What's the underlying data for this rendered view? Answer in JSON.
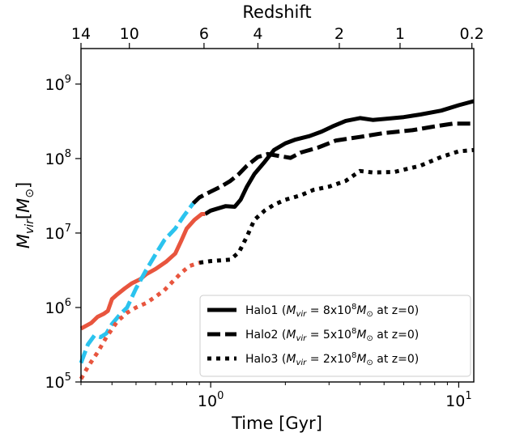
{
  "chart_data": {
    "type": "line",
    "title": "",
    "xlabel": "Time [Gyr]",
    "ylabel_main": "M",
    "ylabel_sub": "vir",
    "ylabel_unit_main": "M",
    "ylabel_unit_sub": "⊙",
    "x_scale": "log",
    "y_scale": "log",
    "xlim": [
      0.3,
      11.5
    ],
    "ylim": [
      100000,
      3000000000
    ],
    "x_ticks": [
      {
        "value": 1,
        "base": "10",
        "exp": "0"
      },
      {
        "value": 10,
        "base": "10",
        "exp": "1"
      }
    ],
    "y_ticks": [
      {
        "value": 100000,
        "base": "10",
        "exp": "5"
      },
      {
        "value": 1000000,
        "base": "10",
        "exp": "6"
      },
      {
        "value": 10000000,
        "base": "10",
        "exp": "7"
      },
      {
        "value": 100000000,
        "base": "10",
        "exp": "8"
      },
      {
        "value": 1000000000,
        "base": "10",
        "exp": "9"
      }
    ],
    "top_axis": {
      "label": "Redshift",
      "ticks": [
        {
          "label": "14",
          "time": 0.3
        },
        {
          "label": "10",
          "time": 0.47
        },
        {
          "label": "6",
          "time": 0.94
        },
        {
          "label": "4",
          "time": 1.55
        },
        {
          "label": "2",
          "time": 3.3
        },
        {
          "label": "1",
          "time": 5.8
        },
        {
          "label": "0.2",
          "time": 11.3
        }
      ]
    },
    "legend_position": "lower-right",
    "series": [
      {
        "name": "Halo1",
        "mass_mantissa": "8",
        "mass_exp": "8",
        "color": "#000000",
        "style": "solid",
        "in_legend": true,
        "points": [
          [
            0.95,
            18000000
          ],
          [
            1.0,
            20000000
          ],
          [
            1.05,
            21000000
          ],
          [
            1.15,
            23000000
          ],
          [
            1.25,
            22500000
          ],
          [
            1.32,
            28000000
          ],
          [
            1.4,
            42000000
          ],
          [
            1.5,
            62000000
          ],
          [
            1.65,
            90000000
          ],
          [
            1.8,
            130000000
          ],
          [
            2.0,
            160000000
          ],
          [
            2.2,
            180000000
          ],
          [
            2.5,
            200000000
          ],
          [
            2.8,
            230000000
          ],
          [
            3.1,
            270000000
          ],
          [
            3.5,
            320000000
          ],
          [
            4.0,
            350000000
          ],
          [
            4.5,
            330000000
          ],
          [
            5.0,
            340000000
          ],
          [
            6.0,
            360000000
          ],
          [
            7.0,
            390000000
          ],
          [
            8.5,
            440000000
          ],
          [
            10.0,
            520000000
          ],
          [
            11.5,
            590000000
          ]
        ]
      },
      {
        "name": "Halo1",
        "color": "#E8553E",
        "style": "solid",
        "in_legend": false,
        "points": [
          [
            0.3,
            520000
          ],
          [
            0.33,
            620000
          ],
          [
            0.35,
            750000
          ],
          [
            0.37,
            820000
          ],
          [
            0.385,
            900000
          ],
          [
            0.4,
            1300000
          ],
          [
            0.42,
            1500000
          ],
          [
            0.45,
            1800000
          ],
          [
            0.48,
            2100000
          ],
          [
            0.52,
            2400000
          ],
          [
            0.55,
            2800000
          ],
          [
            0.6,
            3300000
          ],
          [
            0.66,
            4100000
          ],
          [
            0.72,
            5300000
          ],
          [
            0.76,
            7800000
          ],
          [
            0.8,
            11500000
          ],
          [
            0.86,
            15000000
          ],
          [
            0.92,
            18000000
          ],
          [
            0.95,
            18000000
          ]
        ]
      },
      {
        "name": "Halo2",
        "mass_mantissa": "5",
        "mass_exp": "8",
        "color": "#000000",
        "style": "dashed",
        "in_legend": true,
        "points": [
          [
            0.85,
            25000000
          ],
          [
            0.9,
            30000000
          ],
          [
            1.0,
            36000000
          ],
          [
            1.1,
            42000000
          ],
          [
            1.2,
            50000000
          ],
          [
            1.3,
            62000000
          ],
          [
            1.4,
            80000000
          ],
          [
            1.55,
            105000000
          ],
          [
            1.7,
            115000000
          ],
          [
            1.9,
            108000000
          ],
          [
            2.1,
            102000000
          ],
          [
            2.3,
            120000000
          ],
          [
            2.7,
            140000000
          ],
          [
            3.2,
            175000000
          ],
          [
            4.0,
            195000000
          ],
          [
            5.0,
            220000000
          ],
          [
            6.5,
            240000000
          ],
          [
            8.0,
            270000000
          ],
          [
            9.5,
            295000000
          ],
          [
            11.5,
            295000000
          ]
        ]
      },
      {
        "name": "Halo2",
        "color": "#2BC3EE",
        "style": "dashed",
        "in_legend": false,
        "points": [
          [
            0.3,
            180000
          ],
          [
            0.32,
            320000
          ],
          [
            0.34,
            420000
          ],
          [
            0.36,
            400000
          ],
          [
            0.38,
            450000
          ],
          [
            0.4,
            600000
          ],
          [
            0.43,
            800000
          ],
          [
            0.46,
            1000000
          ],
          [
            0.5,
            1800000
          ],
          [
            0.55,
            3200000
          ],
          [
            0.6,
            5200000
          ],
          [
            0.65,
            8000000
          ],
          [
            0.72,
            11500000
          ],
          [
            0.78,
            17000000
          ],
          [
            0.85,
            25000000
          ]
        ]
      },
      {
        "name": "Halo3",
        "mass_mantissa": "2",
        "mass_exp": "8",
        "color": "#000000",
        "style": "dotted",
        "in_legend": true,
        "points": [
          [
            0.9,
            4000000
          ],
          [
            1.0,
            4200000
          ],
          [
            1.1,
            4300000
          ],
          [
            1.2,
            4400000
          ],
          [
            1.3,
            5500000
          ],
          [
            1.4,
            9000000
          ],
          [
            1.5,
            15000000
          ],
          [
            1.65,
            20000000
          ],
          [
            1.8,
            24000000
          ],
          [
            2.0,
            28000000
          ],
          [
            2.3,
            32000000
          ],
          [
            2.6,
            38000000
          ],
          [
            3.0,
            42000000
          ],
          [
            3.5,
            50000000
          ],
          [
            4.0,
            68000000
          ],
          [
            4.5,
            65000000
          ],
          [
            5.5,
            66000000
          ],
          [
            7.0,
            80000000
          ],
          [
            8.5,
            105000000
          ],
          [
            10.0,
            125000000
          ],
          [
            11.5,
            130000000
          ]
        ]
      },
      {
        "name": "Halo3",
        "color": "#E8553E",
        "style": "dotted",
        "in_legend": false,
        "points": [
          [
            0.3,
            110000
          ],
          [
            0.32,
            160000
          ],
          [
            0.35,
            250000
          ],
          [
            0.38,
            400000
          ],
          [
            0.42,
            650000
          ],
          [
            0.46,
            850000
          ],
          [
            0.5,
            1000000
          ],
          [
            0.55,
            1150000
          ],
          [
            0.6,
            1400000
          ],
          [
            0.65,
            1700000
          ],
          [
            0.7,
            2200000
          ],
          [
            0.76,
            2900000
          ],
          [
            0.82,
            3600000
          ],
          [
            0.9,
            4000000
          ]
        ]
      }
    ],
    "legend_template": {
      "open": "(",
      "var": "M",
      "sub": "vir",
      "eq": " = ",
      "x": "x10",
      "unit": "M",
      "unit_sub": "⊙",
      "suffix": " at z=0)"
    }
  }
}
